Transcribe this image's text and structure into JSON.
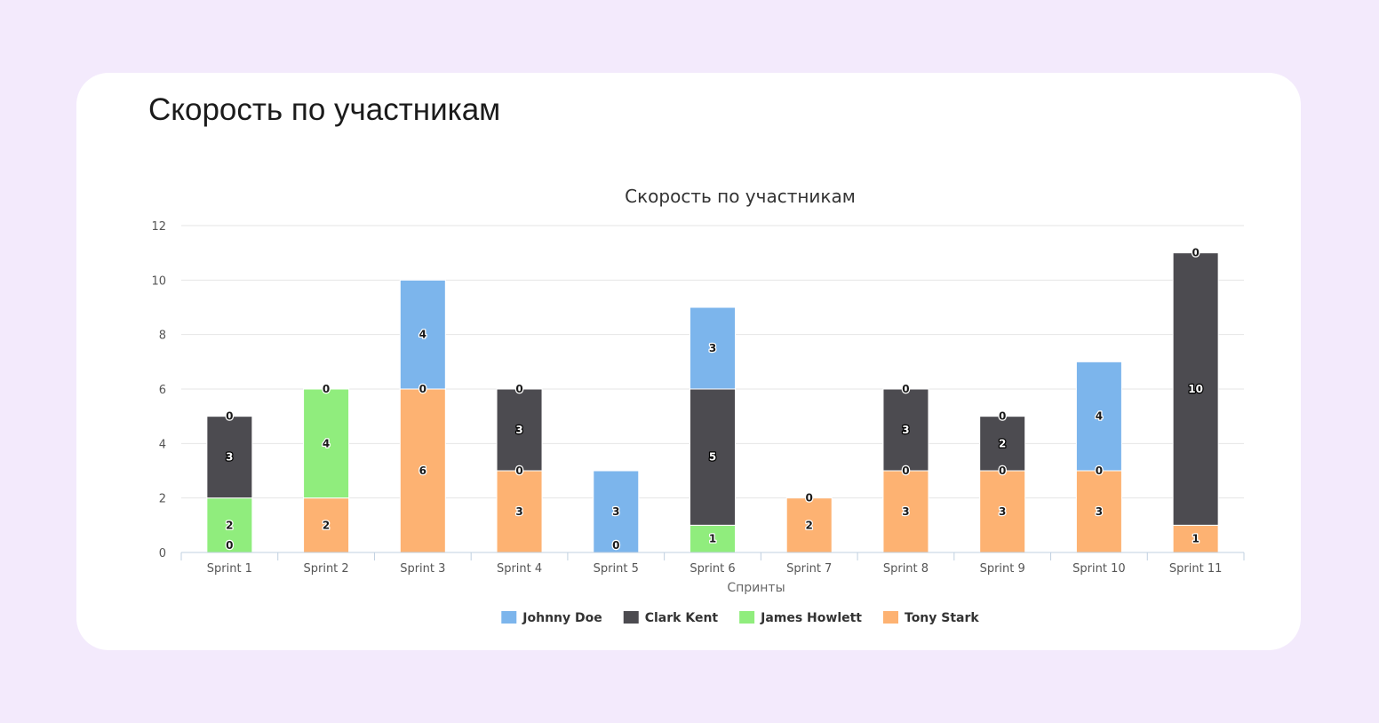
{
  "page": {
    "heading": "Скорость по участникам"
  },
  "chart_data": {
    "type": "bar",
    "stacked": true,
    "title": "Скорость по участникам",
    "xlabel": "Спринты",
    "ylabel": "",
    "ylim": [
      0,
      12
    ],
    "yticks": [
      0,
      2,
      4,
      6,
      8,
      10,
      12
    ],
    "grid": true,
    "legend_position": "bottom",
    "categories": [
      "Sprint 1",
      "Sprint 2",
      "Sprint 3",
      "Sprint 4",
      "Sprint 5",
      "Sprint 6",
      "Sprint 7",
      "Sprint 8",
      "Sprint 9",
      "Sprint 10",
      "Sprint 11"
    ],
    "series": [
      {
        "name": "Johnny Doe",
        "color": "#7cb5ec",
        "label_color": "#1a1a1a",
        "label_halo": "#ffffff",
        "values": [
          null,
          null,
          4,
          null,
          3,
          3,
          null,
          null,
          null,
          4,
          null
        ]
      },
      {
        "name": "Clark Kent",
        "color": "#4c4b50",
        "label_color": "#ffffff",
        "label_halo": "#000000",
        "values": [
          3,
          null,
          null,
          3,
          null,
          5,
          null,
          3,
          2,
          null,
          10
        ]
      },
      {
        "name": "James Howlett",
        "color": "#90ed7d",
        "label_color": "#1a1a1a",
        "label_halo": "#ffffff",
        "values": [
          2,
          4,
          null,
          null,
          null,
          1,
          null,
          null,
          null,
          null,
          null
        ]
      },
      {
        "name": "Tony Stark",
        "color": "#fdb272",
        "label_color": "#1a1a1a",
        "label_halo": "#ffffff",
        "values": [
          null,
          2,
          6,
          3,
          null,
          null,
          2,
          3,
          3,
          3,
          1
        ]
      }
    ],
    "zero_labels": [
      {
        "category": "Sprint 1",
        "at": 5
      },
      {
        "category": "Sprint 1",
        "at": 0
      },
      {
        "category": "Sprint 2",
        "at": 6
      },
      {
        "category": "Sprint 3",
        "at": 6
      },
      {
        "category": "Sprint 4",
        "at": 6
      },
      {
        "category": "Sprint 4",
        "at": 3
      },
      {
        "category": "Sprint 5",
        "at": 0
      },
      {
        "category": "Sprint 7",
        "at": 2
      },
      {
        "category": "Sprint 8",
        "at": 6
      },
      {
        "category": "Sprint 8",
        "at": 3
      },
      {
        "category": "Sprint 9",
        "at": 5
      },
      {
        "category": "Sprint 9",
        "at": 3
      },
      {
        "category": "Sprint 10",
        "at": 3
      },
      {
        "category": "Sprint 11",
        "at": 11
      }
    ]
  }
}
